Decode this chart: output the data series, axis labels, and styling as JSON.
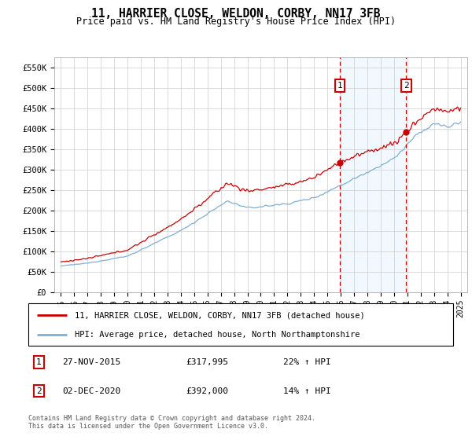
{
  "title": "11, HARRIER CLOSE, WELDON, CORBY, NN17 3FB",
  "subtitle": "Price paid vs. HM Land Registry's House Price Index (HPI)",
  "legend_line1": "11, HARRIER CLOSE, WELDON, CORBY, NN17 3FB (detached house)",
  "legend_line2": "HPI: Average price, detached house, North Northamptonshire",
  "footer": "Contains HM Land Registry data © Crown copyright and database right 2024.\nThis data is licensed under the Open Government Licence v3.0.",
  "sale1_date": "27-NOV-2015",
  "sale1_price": "£317,995",
  "sale1_hpi": "22% ↑ HPI",
  "sale2_date": "02-DEC-2020",
  "sale2_price": "£392,000",
  "sale2_hpi": "14% ↑ HPI",
  "sale1_x": 2015.92,
  "sale2_x": 2020.92,
  "sale1_y": 317995,
  "sale2_y": 392000,
  "ylim": [
    0,
    575000
  ],
  "xlim": [
    1994.5,
    2025.5
  ],
  "background_color": "#ffffff",
  "plot_bg_color": "#ffffff",
  "grid_color": "#cccccc",
  "hpi_line_color": "#7eb0d4",
  "price_line_color": "#cc0000",
  "vline_color": "#cc0000",
  "shade_color": "#ddeeff",
  "shade_alpha": 0.4,
  "marker_box_color": "#cc0000",
  "yticks": [
    0,
    50000,
    100000,
    150000,
    200000,
    250000,
    300000,
    350000,
    400000,
    450000,
    500000,
    550000
  ],
  "ytick_labels": [
    "£0",
    "£50K",
    "£100K",
    "£150K",
    "£200K",
    "£250K",
    "£300K",
    "£350K",
    "£400K",
    "£450K",
    "£500K",
    "£550K"
  ],
  "xticks": [
    1995,
    1996,
    1997,
    1998,
    1999,
    2000,
    2001,
    2002,
    2003,
    2004,
    2005,
    2006,
    2007,
    2008,
    2009,
    2010,
    2011,
    2012,
    2013,
    2014,
    2015,
    2016,
    2017,
    2018,
    2019,
    2020,
    2021,
    2022,
    2023,
    2024,
    2025
  ]
}
